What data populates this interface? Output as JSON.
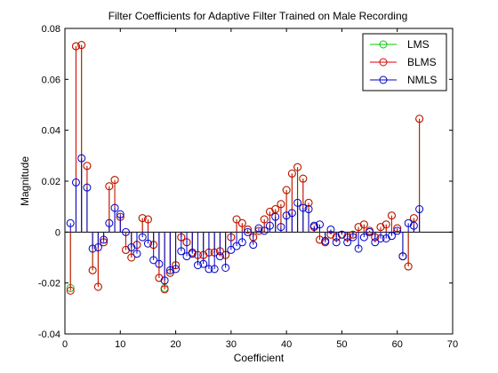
{
  "chart_data": {
    "type": "stem",
    "title": "Filter Coefficients for Adaptive Filter Trained on Male Recording",
    "xlabel": "Coefficient",
    "ylabel": "Magnitude",
    "xlim": [
      0,
      70
    ],
    "ylim": [
      -0.04,
      0.08
    ],
    "xticks": [
      "0",
      "10",
      "20",
      "30",
      "40",
      "50",
      "60",
      "70"
    ],
    "yticks": [
      "-0.04",
      "-0.02",
      "0",
      "0.02",
      "0.04",
      "0.06",
      "0.08"
    ],
    "grid": false,
    "legend_position": "top-right",
    "x": [
      1,
      2,
      3,
      4,
      5,
      6,
      7,
      8,
      9,
      10,
      11,
      12,
      13,
      14,
      15,
      16,
      17,
      18,
      19,
      20,
      21,
      22,
      23,
      24,
      25,
      26,
      27,
      28,
      29,
      30,
      31,
      32,
      33,
      34,
      35,
      36,
      37,
      38,
      39,
      40,
      41,
      42,
      43,
      44,
      45,
      46,
      47,
      48,
      49,
      50,
      51,
      52,
      53,
      54,
      55,
      56,
      57,
      58,
      59,
      60,
      61,
      62,
      63,
      64
    ],
    "series": [
      {
        "name": "LMS",
        "color": "#00cc00",
        "values": [
          -0.022,
          0.073,
          0.0735,
          0.026,
          -0.015,
          -0.0215,
          -0.004,
          0.018,
          0.0205,
          0.006,
          -0.007,
          -0.01,
          -0.005,
          0.0055,
          0.005,
          -0.005,
          -0.018,
          -0.022,
          -0.016,
          -0.013,
          -0.002,
          -0.004,
          -0.008,
          -0.009,
          -0.009,
          -0.008,
          -0.008,
          -0.0075,
          -0.009,
          -0.002,
          0.005,
          0.0035,
          0.001,
          -0.002,
          0.0005,
          0.005,
          0.008,
          0.009,
          0.011,
          0.0165,
          0.023,
          0.0255,
          0.021,
          0.0115,
          0.002,
          -0.003,
          -0.004,
          -0.001,
          -0.002,
          -0.001,
          -0.002,
          -0.001,
          0.002,
          0.003,
          0.0005,
          -0.002,
          0.002,
          0.003,
          0.0065,
          0.0015,
          -0.0095,
          -0.0135,
          0.0055,
          0.0445
        ]
      },
      {
        "name": "BLMS",
        "color": "#dd0000",
        "values": [
          -0.023,
          0.073,
          0.0735,
          0.026,
          -0.015,
          -0.0215,
          -0.004,
          0.018,
          0.0205,
          0.006,
          -0.007,
          -0.01,
          -0.005,
          0.0055,
          0.005,
          -0.005,
          -0.018,
          -0.0225,
          -0.016,
          -0.013,
          -0.002,
          -0.004,
          -0.008,
          -0.009,
          -0.009,
          -0.008,
          -0.008,
          -0.0075,
          -0.009,
          -0.002,
          0.005,
          0.0035,
          0.001,
          -0.002,
          0.0005,
          0.005,
          0.008,
          0.009,
          0.011,
          0.0165,
          0.023,
          0.0255,
          0.021,
          0.0115,
          0.002,
          -0.003,
          -0.004,
          -0.001,
          -0.002,
          -0.001,
          -0.002,
          -0.001,
          0.002,
          0.003,
          0.0005,
          -0.002,
          0.002,
          0.003,
          0.0065,
          0.0015,
          -0.0095,
          -0.0135,
          0.0055,
          0.0445
        ]
      },
      {
        "name": "NMLS",
        "color": "#0000cc",
        "values": [
          0.0035,
          0.0195,
          0.029,
          0.0175,
          -0.0065,
          -0.006,
          -0.003,
          0.0035,
          0.0095,
          0.007,
          0.0,
          -0.006,
          -0.0085,
          -0.002,
          -0.0045,
          -0.011,
          -0.0125,
          -0.019,
          -0.015,
          -0.0145,
          -0.0075,
          -0.0095,
          -0.0085,
          -0.013,
          -0.0125,
          -0.0145,
          -0.0145,
          -0.0095,
          -0.014,
          -0.007,
          -0.0055,
          -0.004,
          0.0,
          -0.005,
          0.0015,
          0.0005,
          0.0025,
          0.006,
          0.002,
          0.0065,
          0.0075,
          0.0115,
          0.0095,
          0.009,
          0.0025,
          0.003,
          -0.0035,
          0.001,
          -0.004,
          -0.001,
          -0.004,
          -0.002,
          -0.0065,
          -0.002,
          0.0,
          -0.004,
          -0.0025,
          -0.0025,
          -0.0015,
          0.0005,
          -0.0095,
          0.0035,
          0.0025,
          0.009
        ]
      }
    ]
  }
}
